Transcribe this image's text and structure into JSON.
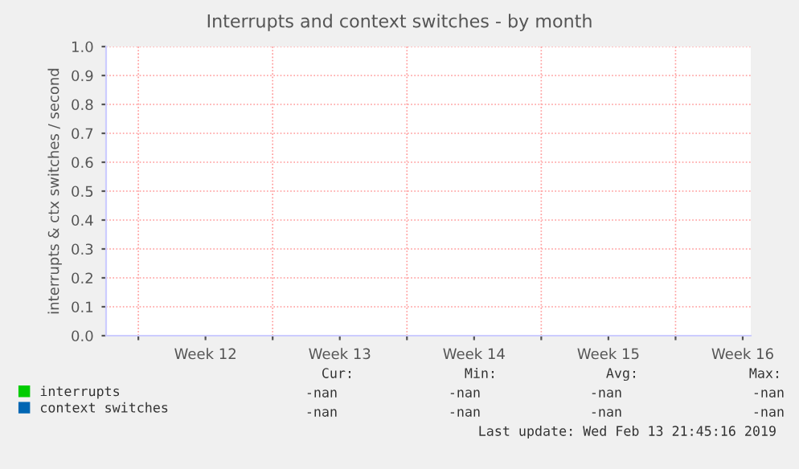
{
  "chart_data": {
    "type": "line",
    "title": "Interrupts and context switches - by month",
    "ylabel": "interrupts & ctx switches / second",
    "categories": [
      "Week 12",
      "Week 13",
      "Week 14",
      "Week 15",
      "Week 16"
    ],
    "series": [
      {
        "name": "interrupts",
        "color": "#00cc00",
        "values": [
          null,
          null,
          null,
          null,
          null
        ]
      },
      {
        "name": "context switches",
        "color": "#0066b3",
        "values": [
          null,
          null,
          null,
          null,
          null
        ]
      }
    ],
    "ylim": [
      0,
      1.0
    ],
    "yticks": [
      {
        "value": 0,
        "label": "0.0"
      },
      0.1,
      0.2,
      0.3,
      0.4,
      0.5,
      0.6,
      0.7,
      0.8,
      0.9,
      {
        "value": 1,
        "label": "1.0"
      }
    ],
    "grid": true,
    "legend": "bottom",
    "annotations": [
      "Cur:",
      "Min:",
      "Avg:",
      "Max:",
      "-nan",
      "-nan",
      "-nan",
      "-nan",
      "-nan",
      "-nan",
      "-nan",
      "-nan",
      "Last update: Wed Feb 13 21:45:16 2019"
    ]
  }
}
